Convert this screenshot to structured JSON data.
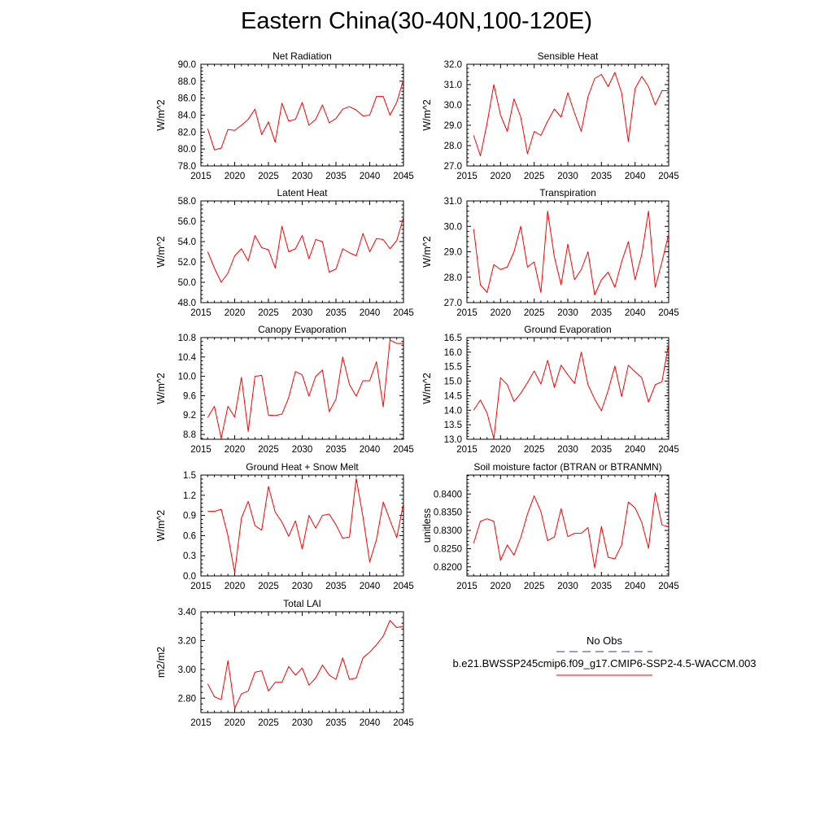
{
  "title": "Eastern China(30-40N,100-120E)",
  "colors": {
    "series": "#ff0000",
    "obs": "#3a3a9a",
    "axis": "#000000"
  },
  "legend": {
    "obs_label": "No Obs",
    "case_label": "b.e21.BWSSP245cmip6.f09_g17.CMIP6-SSP2-4.5-WACCM.003"
  },
  "chart_data": [
    {
      "type": "line",
      "title": "Net Radiation",
      "ylabel": "W/m^2",
      "xlim": [
        2015,
        2045
      ],
      "ylim": [
        78.0,
        90.0
      ],
      "xticks": [
        "2015",
        "2020",
        "2025",
        "2030",
        "2035",
        "2040",
        "2045"
      ],
      "yticks": [
        "78.0",
        "80.0",
        "82.0",
        "84.0",
        "86.0",
        "88.0",
        "90.0"
      ],
      "ytick_values": [
        78,
        80,
        82,
        84,
        86,
        88,
        90
      ],
      "x": [
        2016,
        2017,
        2018,
        2019,
        2020,
        2021,
        2022,
        2023,
        2024,
        2025,
        2026,
        2027,
        2028,
        2029,
        2030,
        2031,
        2032,
        2033,
        2034,
        2035,
        2036,
        2037,
        2038,
        2039,
        2040,
        2041,
        2042,
        2043,
        2044,
        2045
      ],
      "values": [
        82.4,
        79.9,
        80.1,
        82.3,
        82.2,
        82.8,
        83.5,
        84.7,
        81.7,
        83.2,
        80.8,
        85.4,
        83.3,
        83.5,
        85.5,
        82.8,
        83.5,
        85.2,
        83.1,
        83.6,
        84.7,
        85.0,
        84.6,
        83.9,
        84.0,
        86.2,
        86.2,
        84.0,
        85.5,
        88.2
      ]
    },
    {
      "type": "line",
      "title": "Sensible Heat",
      "ylabel": "W/m^2",
      "xlim": [
        2015,
        2045
      ],
      "ylim": [
        27.0,
        32.0
      ],
      "xticks": [
        "2015",
        "2020",
        "2025",
        "2030",
        "2035",
        "2040",
        "2045"
      ],
      "yticks": [
        "27.0",
        "28.0",
        "29.0",
        "30.0",
        "31.0",
        "32.0"
      ],
      "ytick_values": [
        27,
        28,
        29,
        30,
        31,
        32
      ],
      "x": [
        2016,
        2017,
        2018,
        2019,
        2020,
        2021,
        2022,
        2023,
        2024,
        2025,
        2026,
        2027,
        2028,
        2029,
        2030,
        2031,
        2032,
        2033,
        2034,
        2035,
        2036,
        2037,
        2038,
        2039,
        2040,
        2041,
        2042,
        2043,
        2044,
        2045
      ],
      "values": [
        28.5,
        27.5,
        29.1,
        31.0,
        29.5,
        28.7,
        30.3,
        29.4,
        27.6,
        28.7,
        28.5,
        29.2,
        29.8,
        29.4,
        30.6,
        29.6,
        28.7,
        30.4,
        31.3,
        31.5,
        30.9,
        31.6,
        30.6,
        28.2,
        30.8,
        31.4,
        30.9,
        30.0,
        30.7,
        30.7
      ]
    },
    {
      "type": "line",
      "title": "Latent Heat",
      "ylabel": "W/m^2",
      "xlim": [
        2015,
        2045
      ],
      "ylim": [
        48.0,
        58.0
      ],
      "xticks": [
        "2015",
        "2020",
        "2025",
        "2030",
        "2035",
        "2040",
        "2045"
      ],
      "yticks": [
        "48.0",
        "50.0",
        "52.0",
        "54.0",
        "56.0",
        "58.0"
      ],
      "ytick_values": [
        48,
        50,
        52,
        54,
        56,
        58
      ],
      "x": [
        2016,
        2017,
        2018,
        2019,
        2020,
        2021,
        2022,
        2023,
        2024,
        2025,
        2026,
        2027,
        2028,
        2029,
        2030,
        2031,
        2032,
        2033,
        2034,
        2035,
        2036,
        2037,
        2038,
        2039,
        2040,
        2041,
        2042,
        2043,
        2044,
        2045
      ],
      "values": [
        53.0,
        51.4,
        50.0,
        50.9,
        52.6,
        53.3,
        52.1,
        54.6,
        53.4,
        53.2,
        51.4,
        55.5,
        53.0,
        53.3,
        54.6,
        52.3,
        54.2,
        54.0,
        51.0,
        51.3,
        53.3,
        52.9,
        52.6,
        54.8,
        53.0,
        54.3,
        54.2,
        53.3,
        54.1,
        56.4
      ]
    },
    {
      "type": "line",
      "title": "Transpiration",
      "ylabel": "W/m^2",
      "xlim": [
        2015,
        2045
      ],
      "ylim": [
        27.0,
        31.0
      ],
      "xticks": [
        "2015",
        "2020",
        "2025",
        "2030",
        "2035",
        "2040",
        "2045"
      ],
      "yticks": [
        "27.0",
        "28.0",
        "29.0",
        "30.0",
        "31.0"
      ],
      "ytick_values": [
        27,
        28,
        29,
        30,
        31
      ],
      "x": [
        2016,
        2017,
        2018,
        2019,
        2020,
        2021,
        2022,
        2023,
        2024,
        2025,
        2026,
        2027,
        2028,
        2029,
        2030,
        2031,
        2032,
        2033,
        2034,
        2035,
        2036,
        2037,
        2038,
        2039,
        2040,
        2041,
        2042,
        2043,
        2044,
        2045
      ],
      "values": [
        29.9,
        27.7,
        27.4,
        28.5,
        28.3,
        28.4,
        29.0,
        30.0,
        28.4,
        28.6,
        27.4,
        30.6,
        28.8,
        27.7,
        29.3,
        27.9,
        28.3,
        29.0,
        27.3,
        27.9,
        28.2,
        27.6,
        28.6,
        29.4,
        27.9,
        28.9,
        30.6,
        27.6,
        28.6,
        29.7
      ]
    },
    {
      "type": "line",
      "title": "Canopy Evaporation",
      "ylabel": "W/m^2",
      "xlim": [
        2015,
        2045
      ],
      "ylim": [
        8.7,
        10.8
      ],
      "xticks": [
        "2015",
        "2020",
        "2025",
        "2030",
        "2035",
        "2040",
        "2045"
      ],
      "yticks": [
        "8.8",
        "9.2",
        "9.6",
        "10.0",
        "10.4",
        "10.8"
      ],
      "ytick_values": [
        8.8,
        9.2,
        9.6,
        10.0,
        10.4,
        10.8
      ],
      "x": [
        2016,
        2017,
        2018,
        2019,
        2020,
        2021,
        2022,
        2023,
        2024,
        2025,
        2026,
        2027,
        2028,
        2029,
        2030,
        2031,
        2032,
        2033,
        2034,
        2035,
        2036,
        2037,
        2038,
        2039,
        2040,
        2041,
        2042,
        2043,
        2044,
        2045
      ],
      "values": [
        9.15,
        9.38,
        8.72,
        9.38,
        9.16,
        9.98,
        8.86,
        10.0,
        10.02,
        9.2,
        9.19,
        9.22,
        9.56,
        10.1,
        10.03,
        9.59,
        10.0,
        10.13,
        9.27,
        9.53,
        10.4,
        9.83,
        9.59,
        9.91,
        9.91,
        10.3,
        9.37,
        10.75,
        10.68,
        10.68
      ]
    },
    {
      "type": "line",
      "title": "Ground Evaporation",
      "ylabel": "W/m^2",
      "xlim": [
        2015,
        2045
      ],
      "ylim": [
        13.0,
        16.5
      ],
      "xticks": [
        "2015",
        "2020",
        "2025",
        "2030",
        "2035",
        "2040",
        "2045"
      ],
      "yticks": [
        "13.0",
        "13.5",
        "14.0",
        "14.5",
        "15.0",
        "15.5",
        "16.0",
        "16.5"
      ],
      "ytick_values": [
        13.0,
        13.5,
        14.0,
        14.5,
        15.0,
        15.5,
        16.0,
        16.5
      ],
      "x": [
        2016,
        2017,
        2018,
        2019,
        2020,
        2021,
        2022,
        2023,
        2024,
        2025,
        2026,
        2027,
        2028,
        2029,
        2030,
        2031,
        2032,
        2033,
        2034,
        2035,
        2036,
        2037,
        2038,
        2039,
        2040,
        2041,
        2042,
        2043,
        2044,
        2045
      ],
      "values": [
        14.0,
        14.35,
        13.9,
        13.02,
        15.12,
        14.88,
        14.3,
        14.58,
        14.95,
        15.35,
        14.9,
        15.72,
        14.78,
        15.55,
        15.22,
        14.92,
        16.0,
        14.88,
        14.38,
        13.98,
        14.68,
        15.52,
        14.47,
        15.55,
        15.32,
        15.12,
        14.28,
        14.88,
        14.98,
        16.3
      ]
    },
    {
      "type": "line",
      "title": "Ground Heat + Snow Melt",
      "ylabel": "W/m^2",
      "xlim": [
        2015,
        2045
      ],
      "ylim": [
        0.0,
        1.5
      ],
      "xticks": [
        "2015",
        "2020",
        "2025",
        "2030",
        "2035",
        "2040",
        "2045"
      ],
      "yticks": [
        "0.0",
        "0.3",
        "0.6",
        "0.9",
        "1.2",
        "1.5"
      ],
      "ytick_values": [
        0.0,
        0.3,
        0.6,
        0.9,
        1.2,
        1.5
      ],
      "x": [
        2016,
        2017,
        2018,
        2019,
        2020,
        2021,
        2022,
        2023,
        2024,
        2025,
        2026,
        2027,
        2028,
        2029,
        2030,
        2031,
        2032,
        2033,
        2034,
        2035,
        2036,
        2037,
        2038,
        2039,
        2040,
        2041,
        2042,
        2043,
        2044,
        2045
      ],
      "values": [
        0.96,
        0.96,
        0.99,
        0.6,
        0.05,
        0.86,
        1.11,
        0.75,
        0.68,
        1.33,
        0.95,
        0.8,
        0.59,
        0.82,
        0.4,
        0.9,
        0.71,
        0.9,
        0.92,
        0.76,
        0.56,
        0.58,
        1.45,
        0.88,
        0.21,
        0.54,
        1.1,
        0.83,
        0.57,
        1.08
      ]
    },
    {
      "type": "line",
      "title": "Soil moisture factor (BTRAN or BTRANMN)",
      "ylabel": "unitless",
      "xlim": [
        2015,
        2045
      ],
      "ylim": [
        0.8175,
        0.8452
      ],
      "xticks": [
        "2015",
        "2020",
        "2025",
        "2030",
        "2035",
        "2040",
        "2045"
      ],
      "yticks": [
        "0.8200",
        "0.8250",
        "0.8300",
        "0.8350",
        "0.8400"
      ],
      "ytick_values": [
        0.82,
        0.825,
        0.83,
        0.835,
        0.84
      ],
      "x": [
        2016,
        2017,
        2018,
        2019,
        2020,
        2021,
        2022,
        2023,
        2024,
        2025,
        2026,
        2027,
        2028,
        2029,
        2030,
        2031,
        2032,
        2033,
        2034,
        2035,
        2036,
        2037,
        2038,
        2039,
        2040,
        2041,
        2042,
        2043,
        2044,
        2045
      ],
      "values": [
        0.8265,
        0.8325,
        0.8332,
        0.8325,
        0.8218,
        0.826,
        0.8232,
        0.828,
        0.8345,
        0.8395,
        0.8352,
        0.8272,
        0.8282,
        0.836,
        0.8283,
        0.8292,
        0.8292,
        0.8308,
        0.8197,
        0.8311,
        0.8226,
        0.8222,
        0.826,
        0.8378,
        0.8362,
        0.8322,
        0.8251,
        0.8403,
        0.8315,
        0.831
      ]
    },
    {
      "type": "line",
      "title": "Total LAI",
      "ylabel": "m2/m2",
      "xlim": [
        2015,
        2045
      ],
      "ylim": [
        2.7,
        3.4
      ],
      "xticks": [
        "2015",
        "2020",
        "2025",
        "2030",
        "2035",
        "2040",
        "2045"
      ],
      "yticks": [
        "2.80",
        "3.00",
        "3.20",
        "3.40"
      ],
      "ytick_values": [
        2.8,
        3.0,
        3.2,
        3.4
      ],
      "x": [
        2016,
        2017,
        2018,
        2019,
        2020,
        2021,
        2022,
        2023,
        2024,
        2025,
        2026,
        2027,
        2028,
        2029,
        2030,
        2031,
        2032,
        2033,
        2034,
        2035,
        2036,
        2037,
        2038,
        2039,
        2040,
        2041,
        2042,
        2043,
        2044,
        2045
      ],
      "values": [
        2.9,
        2.81,
        2.79,
        3.06,
        2.73,
        2.83,
        2.85,
        2.98,
        2.99,
        2.85,
        2.91,
        2.91,
        3.02,
        2.96,
        3.01,
        2.89,
        2.94,
        3.03,
        2.96,
        2.93,
        3.08,
        2.93,
        2.94,
        3.08,
        3.12,
        3.17,
        3.23,
        3.34,
        3.29,
        3.3
      ]
    }
  ]
}
